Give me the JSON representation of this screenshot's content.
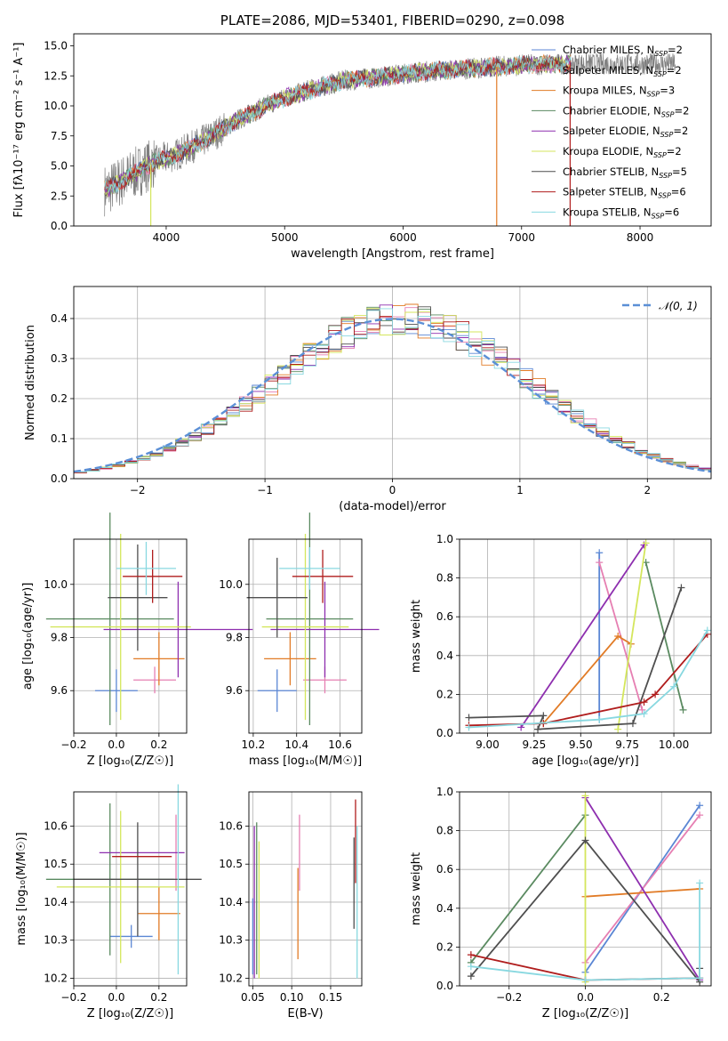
{
  "colors": {
    "Chabrier MILES": "#5a86d4",
    "Salpeter MILES": "#e67fb2",
    "Kroupa MILES": "#e17b26",
    "Chabrier ELODIE": "#5a8a60",
    "Salpeter ELODIE": "#8e2faf",
    "Kroupa ELODIE": "#d4e65c",
    "Chabrier STELIB": "#4f4f4f",
    "Salpeter STELIB": "#b01d1d",
    "Kroupa STELIB": "#88d8e0",
    "data": "#7f7f7f",
    "normal": "#5b8fd6"
  },
  "chart_data": [
    {
      "id": "spectrum",
      "type": "line",
      "title": "PLATE=2086, MJD=53401, FIBERID=0290, z=0.098",
      "xlabel": "wavelength [Angstrom, rest frame]",
      "ylabel": "Flux [fλ10⁻¹⁷ erg cm⁻² s⁻¹ A⁻¹]",
      "xlim": [
        3220,
        8600
      ],
      "ylim": [
        0,
        16
      ],
      "xticks": [
        "4000",
        "5000",
        "6000",
        "7000",
        "8000"
      ],
      "yticks": [
        "0.0",
        "2.5",
        "5.0",
        "7.5",
        "10.0",
        "12.5",
        "15.0"
      ],
      "legend_position": "upper right",
      "legend": [
        {
          "label": "Chabrier MILES, N",
          "sub": "SSP",
          "value": "=2"
        },
        {
          "label": "Salpeter MILES, N",
          "sub": "SSP",
          "value": "=2"
        },
        {
          "label": "Kroupa MILES, N",
          "sub": "SSP",
          "value": "=3"
        },
        {
          "label": "Chabrier ELODIE, N",
          "sub": "SSP",
          "value": "=2"
        },
        {
          "label": "Salpeter ELODIE, N",
          "sub": "SSP",
          "value": "=2"
        },
        {
          "label": "Kroupa ELODIE, N",
          "sub": "SSP",
          "value": "=2"
        },
        {
          "label": "Chabrier STELIB, N",
          "sub": "SSP",
          "value": "=5"
        },
        {
          "label": "Salpeter STELIB, N",
          "sub": "SSP",
          "value": "=6"
        },
        {
          "label": "Kroupa STELIB, N",
          "sub": "SSP",
          "value": "=6"
        }
      ],
      "continuum": [
        [
          3500,
          3.0
        ],
        [
          3700,
          4.2
        ],
        [
          3900,
          5.3
        ],
        [
          4100,
          6.0
        ],
        [
          4300,
          7.0
        ],
        [
          4600,
          8.8
        ],
        [
          4900,
          10.3
        ],
        [
          5200,
          11.3
        ],
        [
          5500,
          12.1
        ],
        [
          5800,
          12.4
        ],
        [
          6100,
          12.8
        ],
        [
          6400,
          13.0
        ],
        [
          6700,
          13.2
        ],
        [
          7000,
          13.4
        ],
        [
          7400,
          13.5
        ]
      ],
      "data_range": [
        3480,
        8300
      ],
      "model_range": [
        3480,
        7420
      ],
      "drops": [
        [
          3870,
          0
        ],
        [
          6790,
          0
        ],
        [
          7410,
          0
        ]
      ]
    },
    {
      "id": "residuals",
      "type": "histogram",
      "xlabel": "(data-model)/error",
      "ylabel": "Normed distribution",
      "xlim": [
        -2.5,
        2.5
      ],
      "ylim": [
        0,
        0.48
      ],
      "xticks": [
        "−2",
        "−1",
        "0",
        "1",
        "2"
      ],
      "yticks": [
        "0.0",
        "0.1",
        "0.2",
        "0.3",
        "0.4"
      ],
      "legend": {
        "label": "𝒩(0, 1)"
      },
      "bin_width": 0.1
    },
    {
      "id": "age_vs_Z",
      "type": "errorbar",
      "xlabel": "Z [log₁₀(Z/Z☉)]",
      "ylabel": "age  [log₁₀(age/yr)]",
      "xlim": [
        -0.2,
        0.33
      ],
      "ylim": [
        9.44,
        10.17
      ],
      "xticks": [
        "−0.2",
        "0.0",
        "0.2"
      ],
      "yticks": [
        "9.6",
        "9.8",
        "10.0"
      ],
      "points": [
        {
          "model": "Chabrier MILES",
          "x": 0.0,
          "y": 9.6,
          "xerr": 0.1,
          "yerr": 0.08
        },
        {
          "model": "Salpeter MILES",
          "x": 0.18,
          "y": 9.64,
          "xerr": 0.1,
          "yerr": 0.05
        },
        {
          "model": "Kroupa MILES",
          "x": 0.2,
          "y": 9.72,
          "xerr": 0.12,
          "yerr": 0.1
        },
        {
          "model": "Chabrier ELODIE",
          "x": -0.03,
          "y": 9.87,
          "xerr": 0.3,
          "yerr": 0.4
        },
        {
          "model": "Salpeter ELODIE",
          "x": 0.29,
          "y": 9.83,
          "xerr": 0.35,
          "yerr": 0.18
        },
        {
          "model": "Kroupa ELODIE",
          "x": 0.02,
          "y": 9.84,
          "xerr": 0.33,
          "yerr": 0.35
        },
        {
          "model": "Chabrier STELIB",
          "x": 0.1,
          "y": 9.95,
          "xerr": 0.14,
          "yerr": 0.2
        },
        {
          "model": "Salpeter STELIB",
          "x": 0.17,
          "y": 10.03,
          "xerr": 0.14,
          "yerr": 0.1
        },
        {
          "model": "Kroupa STELIB",
          "x": 0.14,
          "y": 10.06,
          "xerr": 0.14,
          "yerr": 0.1
        }
      ]
    },
    {
      "id": "age_vs_mass",
      "type": "errorbar",
      "xlabel": "mass [log₁₀(M/M☉)]",
      "ylabel": "",
      "xlim": [
        10.18,
        10.7
      ],
      "ylim": [
        9.44,
        10.17
      ],
      "xticks": [
        "10.2",
        "10.4",
        "10.6"
      ],
      "yticks": [
        "9.6",
        "9.8",
        "10.0"
      ],
      "points": [
        {
          "model": "Chabrier MILES",
          "x": 10.31,
          "y": 9.6,
          "xerr": 0.09,
          "yerr": 0.08
        },
        {
          "model": "Salpeter MILES",
          "x": 10.53,
          "y": 9.64,
          "xerr": 0.1,
          "yerr": 0.05
        },
        {
          "model": "Kroupa MILES",
          "x": 10.37,
          "y": 9.72,
          "xerr": 0.12,
          "yerr": 0.1
        },
        {
          "model": "Chabrier ELODIE",
          "x": 10.46,
          "y": 9.87,
          "xerr": 0.2,
          "yerr": 0.4
        },
        {
          "model": "Salpeter ELODIE",
          "x": 10.53,
          "y": 9.83,
          "xerr": 0.25,
          "yerr": 0.18
        },
        {
          "model": "Kroupa ELODIE",
          "x": 10.44,
          "y": 9.84,
          "xerr": 0.2,
          "yerr": 0.35
        },
        {
          "model": "Chabrier STELIB",
          "x": 10.31,
          "y": 9.95,
          "xerr": 0.14,
          "yerr": 0.15
        },
        {
          "model": "Salpeter STELIB",
          "x": 10.52,
          "y": 10.03,
          "xerr": 0.14,
          "yerr": 0.1
        },
        {
          "model": "Kroupa STELIB",
          "x": 10.46,
          "y": 10.06,
          "xerr": 0.14,
          "yerr": 0.08
        }
      ]
    },
    {
      "id": "weight_vs_age",
      "type": "line",
      "xlabel": "age  [log₁₀(age/yr)]",
      "ylabel": "mass weight",
      "xlim": [
        8.85,
        10.2
      ],
      "ylim": [
        0,
        1.0
      ],
      "xticks": [
        "9.00",
        "9.25",
        "9.50",
        "9.75",
        "10.00"
      ],
      "yticks": [
        "0.0",
        "0.2",
        "0.4",
        "0.6",
        "0.8",
        "1.0"
      ],
      "series": [
        {
          "model": "Chabrier MILES",
          "x": [
            9.6,
            9.6
          ],
          "y": [
            0.07,
            0.93
          ]
        },
        {
          "model": "Salpeter MILES",
          "x": [
            9.6,
            9.83
          ],
          "y": [
            0.88,
            0.12
          ]
        },
        {
          "model": "Kroupa MILES",
          "x": [
            9.3,
            9.7,
            9.77
          ],
          "y": [
            0.05,
            0.5,
            0.46
          ]
        },
        {
          "model": "Chabrier ELODIE",
          "x": [
            9.85,
            10.05
          ],
          "y": [
            0.88,
            0.12
          ]
        },
        {
          "model": "Salpeter ELODIE",
          "x": [
            9.18,
            9.84
          ],
          "y": [
            0.03,
            0.97
          ]
        },
        {
          "model": "Kroupa ELODIE",
          "x": [
            9.7,
            9.85
          ],
          "y": [
            0.02,
            0.98
          ]
        },
        {
          "model": "Chabrier STELIB",
          "x": [
            8.9,
            9.3,
            9.27,
            9.78,
            10.04
          ],
          "y": [
            0.08,
            0.09,
            0.02,
            0.05,
            0.75
          ]
        },
        {
          "model": "Salpeter STELIB",
          "x": [
            8.9,
            9.3,
            9.84,
            9.9,
            10.18
          ],
          "y": [
            0.04,
            0.05,
            0.16,
            0.2,
            0.51
          ]
        },
        {
          "model": "Kroupa STELIB",
          "x": [
            8.9,
            9.6,
            9.84,
            10.0,
            10.18
          ],
          "y": [
            0.03,
            0.07,
            0.1,
            0.24,
            0.53
          ]
        }
      ]
    },
    {
      "id": "mass_vs_Z",
      "type": "errorbar",
      "xlabel": "Z [log₁₀(Z/Z☉)]",
      "ylabel": "mass [log₁₀(M/M☉)]",
      "xlim": [
        -0.2,
        0.33
      ],
      "ylim": [
        10.18,
        10.69
      ],
      "xticks": [
        "−0.2",
        "0.0",
        "0.2"
      ],
      "yticks": [
        "10.2",
        "10.3",
        "10.4",
        "10.5",
        "10.6"
      ],
      "points": [
        {
          "model": "Chabrier MILES",
          "x": 0.07,
          "y": 10.31,
          "xerr": 0.1,
          "yerr": 0.03
        },
        {
          "model": "Salpeter MILES",
          "x": 0.28,
          "y": 10.53,
          "xerr": 0.0,
          "yerr": 0.1
        },
        {
          "model": "Kroupa MILES",
          "x": 0.2,
          "y": 10.37,
          "xerr": 0.1,
          "yerr": 0.07
        },
        {
          "model": "Chabrier ELODIE",
          "x": -0.03,
          "y": 10.46,
          "xerr": 0.3,
          "yerr": 0.2
        },
        {
          "model": "Salpeter ELODIE",
          "x": 0.12,
          "y": 10.53,
          "xerr": 0.2,
          "yerr": 0.0
        },
        {
          "model": "Kroupa ELODIE",
          "x": 0.02,
          "y": 10.44,
          "xerr": 0.3,
          "yerr": 0.2
        },
        {
          "model": "Chabrier STELIB",
          "x": 0.1,
          "y": 10.46,
          "xerr": 0.3,
          "yerr": 0.15
        },
        {
          "model": "Salpeter STELIB",
          "x": 0.12,
          "y": 10.52,
          "xerr": 0.14,
          "yerr": 0.0
        },
        {
          "model": "Kroupa STELIB",
          "x": 0.29,
          "y": 10.46,
          "xerr": 0.0,
          "yerr": 0.25
        }
      ]
    },
    {
      "id": "mass_vs_ebv",
      "type": "errorbar",
      "xlabel": "E(B-V)",
      "ylabel": "",
      "xlim": [
        0.045,
        0.19
      ],
      "ylim": [
        10.18,
        10.69
      ],
      "xticks": [
        "0.05",
        "0.10",
        "0.15"
      ],
      "yticks": [
        "10.2",
        "10.3",
        "10.4",
        "10.5",
        "10.6"
      ],
      "points": [
        {
          "model": "Chabrier MILES",
          "x": 0.05,
          "y": 10.31,
          "xerr": 0,
          "yerr": 0.1
        },
        {
          "model": "Salpeter MILES",
          "x": 0.11,
          "y": 10.53,
          "xerr": 0,
          "yerr": 0.1
        },
        {
          "model": "Kroupa MILES",
          "x": 0.108,
          "y": 10.37,
          "xerr": 0,
          "yerr": 0.12
        },
        {
          "model": "Chabrier ELODIE",
          "x": 0.055,
          "y": 10.41,
          "xerr": 0,
          "yerr": 0.2
        },
        {
          "model": "Salpeter ELODIE",
          "x": 0.052,
          "y": 10.4,
          "xerr": 0,
          "yerr": 0.2
        },
        {
          "model": "Kroupa ELODIE",
          "x": 0.058,
          "y": 10.38,
          "xerr": 0,
          "yerr": 0.18
        },
        {
          "model": "Chabrier STELIB",
          "x": 0.18,
          "y": 10.45,
          "xerr": 0,
          "yerr": 0.12
        },
        {
          "model": "Salpeter STELIB",
          "x": 0.182,
          "y": 10.56,
          "xerr": 0,
          "yerr": 0.11
        },
        {
          "model": "Kroupa STELIB",
          "x": 0.184,
          "y": 10.4,
          "xerr": 0,
          "yerr": 0.2
        }
      ]
    },
    {
      "id": "weight_vs_Z",
      "type": "line",
      "xlabel": "Z [log₁₀(Z/Z☉)]",
      "ylabel": "mass weight",
      "xlim": [
        -0.33,
        0.33
      ],
      "ylim": [
        0,
        1.0
      ],
      "xticks": [
        "−0.2",
        "0.0",
        "0.2"
      ],
      "yticks": [
        "0.0",
        "0.2",
        "0.4",
        "0.6",
        "0.8",
        "1.0"
      ],
      "series": [
        {
          "model": "Chabrier MILES",
          "x": [
            0.0,
            0.3
          ],
          "y": [
            0.07,
            0.93
          ]
        },
        {
          "model": "Salpeter MILES",
          "x": [
            0.0,
            0.3
          ],
          "y": [
            0.12,
            0.88
          ]
        },
        {
          "model": "Kroupa MILES",
          "x": [
            0.0,
            0.3
          ],
          "y": [
            0.46,
            0.5
          ]
        },
        {
          "model": "Chabrier ELODIE",
          "x": [
            -0.3,
            0.0
          ],
          "y": [
            0.12,
            0.88
          ]
        },
        {
          "model": "Salpeter ELODIE",
          "x": [
            0.0,
            0.3
          ],
          "y": [
            0.97,
            0.03
          ]
        },
        {
          "model": "Kroupa ELODIE",
          "x": [
            0.0,
            0.0
          ],
          "y": [
            0.02,
            0.98
          ]
        },
        {
          "model": "Chabrier STELIB",
          "x": [
            -0.3,
            0.0,
            0.3,
            0.3
          ],
          "y": [
            0.05,
            0.75,
            0.02,
            0.09
          ]
        },
        {
          "model": "Salpeter STELIB",
          "x": [
            -0.3,
            0.0,
            0.3
          ],
          "y": [
            0.16,
            0.03,
            0.04
          ]
        },
        {
          "model": "Kroupa STELIB",
          "x": [
            -0.3,
            0.0,
            0.3,
            0.3
          ],
          "y": [
            0.1,
            0.03,
            0.04,
            0.53
          ]
        }
      ]
    }
  ]
}
